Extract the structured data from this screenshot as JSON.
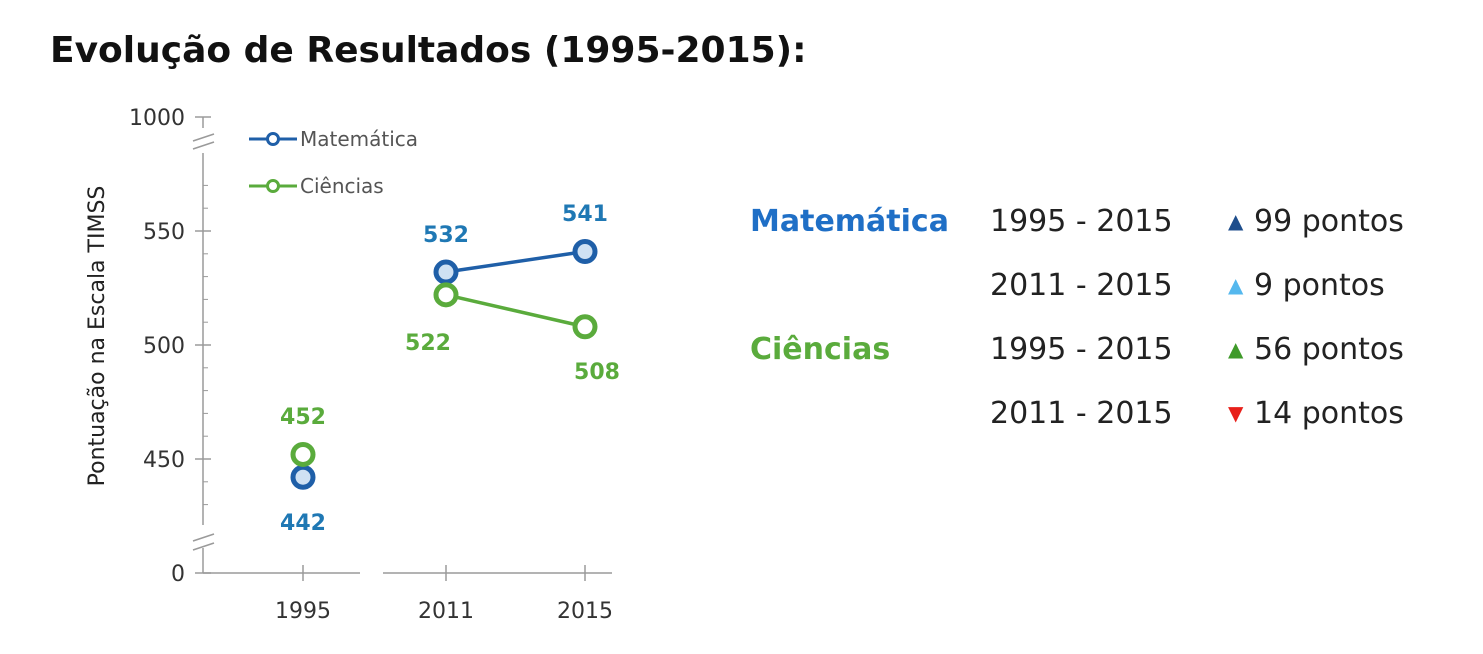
{
  "title": "Evolução de Resultados (1995-2015):",
  "chart_data": {
    "type": "line",
    "title": "Evolução de Resultados (1995-2015):",
    "ylabel": "Pontuação na Escala TIMSS",
    "xlabel": "",
    "categories": [
      "1995",
      "2011",
      "2015"
    ],
    "y_ticks": [
      "0",
      "450",
      "500",
      "550",
      "1000"
    ],
    "ylim_broken": [
      425,
      570
    ],
    "axis_break": true,
    "legend_position": "top-left",
    "series": [
      {
        "name": "Matemática",
        "color": "#1f5fa8",
        "values": [
          442,
          532,
          541
        ],
        "value_labels": [
          "442",
          "532",
          "541"
        ],
        "connect": [
          [
            1,
            2
          ]
        ]
      },
      {
        "name": "Ciências",
        "color": "#5aab3c",
        "values": [
          452,
          522,
          508
        ],
        "value_labels": [
          "452",
          "522",
          "508"
        ],
        "connect": [
          [
            1,
            2
          ]
        ]
      }
    ]
  },
  "summary": [
    {
      "subject": "Matemática",
      "subject_color": "#1f6fc6",
      "period": "1995 - 2015",
      "arrow": "▲",
      "arrow_color": "#1f4e8c",
      "change": "99 pontos"
    },
    {
      "subject": "",
      "subject_color": "#1f6fc6",
      "period": "2011 - 2015",
      "arrow": "▲",
      "arrow_color": "#55b8ee",
      "change": "9 pontos"
    },
    {
      "subject": "Ciências",
      "subject_color": "#5aab3c",
      "period": "1995 - 2015",
      "arrow": "▲",
      "arrow_color": "#3f9a2a",
      "change": "56 pontos"
    },
    {
      "subject": "",
      "subject_color": "#5aab3c",
      "period": "2011 - 2015",
      "arrow": "▼",
      "arrow_color": "#e8201a",
      "change": "14 pontos"
    }
  ]
}
